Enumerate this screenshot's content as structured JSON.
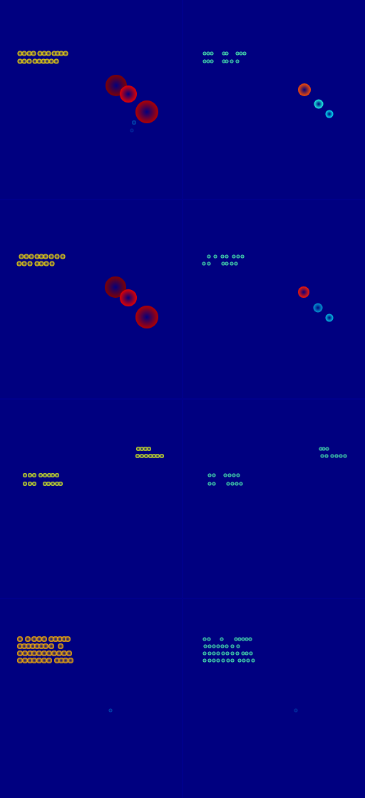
{
  "chart_data": [
    {
      "type": "scatter",
      "xlim": [
        0,
        256
      ],
      "ylim": [
        280,
        0
      ],
      "zlim": [
        0,
        1
      ],
      "tick_labels": false,
      "x": [
        28,
        34,
        41,
        47,
        56,
        62,
        68,
        76,
        81,
        86,
        92,
        28,
        34,
        41,
        49,
        55,
        61,
        66,
        72,
        79,
        163,
        180,
        206,
        188,
        185
      ],
      "y": [
        75,
        75,
        75,
        75,
        75,
        75,
        75,
        75,
        75,
        75,
        75,
        86,
        86,
        86,
        86,
        86,
        86,
        86,
        86,
        86,
        120,
        132,
        157,
        172,
        183
      ],
      "values": [
        0.65,
        0.65,
        0.65,
        0.65,
        0.65,
        0.65,
        0.65,
        0.65,
        0.65,
        0.65,
        0.65,
        0.65,
        0.65,
        0.65,
        0.65,
        0.65,
        0.65,
        0.65,
        0.65,
        0.65,
        1.0,
        0.9,
        0.95,
        0.15,
        0.1
      ],
      "sizes": [
        7,
        7,
        7,
        7,
        7,
        7,
        7,
        7,
        7,
        7,
        7,
        7,
        7,
        7,
        7,
        7,
        7,
        7,
        7,
        7,
        30,
        24,
        32,
        6,
        5
      ]
    },
    {
      "type": "scatter",
      "xlim": [
        0,
        256
      ],
      "ylim": [
        280,
        0
      ],
      "zlim": [
        0,
        1
      ],
      "tick_labels": false,
      "x": [
        31,
        36,
        41,
        58,
        62,
        77,
        82,
        87,
        31,
        36,
        41,
        58,
        62,
        69,
        77,
        171,
        191,
        206
      ],
      "y": [
        75,
        75,
        75,
        75,
        75,
        75,
        75,
        75,
        86,
        86,
        86,
        86,
        86,
        86,
        86,
        126,
        146,
        160
      ],
      "values": [
        0.45,
        0.45,
        0.45,
        0.45,
        0.45,
        0.45,
        0.45,
        0.45,
        0.45,
        0.45,
        0.45,
        0.45,
        0.45,
        0.45,
        0.45,
        0.8,
        0.4,
        0.35
      ],
      "sizes": [
        5,
        5,
        5,
        5,
        5,
        5,
        5,
        5,
        5,
        5,
        5,
        5,
        5,
        5,
        5,
        18,
        13,
        11
      ]
    },
    {
      "type": "scatter",
      "xlim": [
        0,
        256
      ],
      "ylim": [
        280,
        0
      ],
      "zlim": [
        0,
        1
      ],
      "tick_labels": false,
      "x": [
        30,
        37,
        44,
        52,
        58,
        64,
        72,
        80,
        88,
        27,
        34,
        42,
        52,
        58,
        65,
        73,
        162,
        180,
        206
      ],
      "y": [
        80,
        80,
        80,
        80,
        80,
        80,
        80,
        80,
        80,
        90,
        90,
        90,
        90,
        90,
        90,
        90,
        123,
        138,
        165
      ],
      "values": [
        0.65,
        0.65,
        0.65,
        0.65,
        0.65,
        0.65,
        0.65,
        0.65,
        0.65,
        0.65,
        0.65,
        0.65,
        0.65,
        0.65,
        0.65,
        0.65,
        1.0,
        0.9,
        0.95
      ],
      "sizes": [
        7,
        7,
        7,
        7,
        7,
        7,
        7,
        7,
        7,
        7,
        7,
        7,
        7,
        7,
        7,
        7,
        30,
        24,
        32
      ]
    },
    {
      "type": "scatter",
      "xlim": [
        0,
        256
      ],
      "ylim": [
        280,
        0
      ],
      "zlim": [
        0,
        1
      ],
      "tick_labels": false,
      "x": [
        37,
        46,
        56,
        62,
        72,
        78,
        84,
        30,
        37,
        57,
        62,
        69,
        75,
        170,
        190,
        206
      ],
      "y": [
        80,
        80,
        80,
        80,
        80,
        80,
        80,
        90,
        90,
        90,
        90,
        90,
        90,
        130,
        152,
        166
      ],
      "values": [
        0.45,
        0.45,
        0.45,
        0.45,
        0.45,
        0.45,
        0.45,
        0.45,
        0.45,
        0.45,
        0.45,
        0.45,
        0.45,
        0.85,
        0.25,
        0.3
      ],
      "sizes": [
        5,
        5,
        5,
        5,
        5,
        5,
        5,
        5,
        5,
        5,
        5,
        5,
        5,
        16,
        13,
        11
      ]
    },
    {
      "type": "scatter",
      "xlim": [
        0,
        256
      ],
      "ylim": [
        280,
        0
      ],
      "zlim": [
        0,
        1
      ],
      "tick_labels": false,
      "x": [
        194,
        199,
        204,
        209,
        193,
        199,
        205,
        211,
        216,
        221,
        227,
        35,
        42,
        48,
        57,
        63,
        69,
        74,
        80,
        35,
        42,
        48,
        63,
        68,
        74,
        80,
        85
      ],
      "y": [
        70,
        70,
        70,
        70,
        80,
        80,
        80,
        80,
        80,
        80,
        80,
        107,
        107,
        107,
        107,
        107,
        107,
        107,
        107,
        119,
        119,
        119,
        119,
        119,
        119,
        119,
        119
      ],
      "values": [
        0.6,
        0.6,
        0.6,
        0.6,
        0.6,
        0.6,
        0.6,
        0.6,
        0.6,
        0.6,
        0.6,
        0.6,
        0.6,
        0.6,
        0.6,
        0.6,
        0.6,
        0.6,
        0.6,
        0.6,
        0.6,
        0.6,
        0.6,
        0.6,
        0.6,
        0.6,
        0.6
      ],
      "sizes": [
        6,
        6,
        6,
        6,
        6,
        6,
        6,
        6,
        6,
        6,
        6,
        6,
        6,
        6,
        6,
        6,
        6,
        6,
        6,
        6,
        6,
        6,
        6,
        6,
        6,
        6,
        6
      ]
    },
    {
      "type": "scatter",
      "xlim": [
        0,
        256
      ],
      "ylim": [
        280,
        0
      ],
      "zlim": [
        0,
        1
      ],
      "tick_labels": false,
      "x": [
        194,
        198,
        203,
        196,
        202,
        210,
        216,
        222,
        228,
        38,
        44,
        60,
        66,
        72,
        78,
        38,
        44,
        64,
        70,
        76,
        82
      ],
      "y": [
        70,
        70,
        70,
        80,
        80,
        80,
        80,
        80,
        80,
        107,
        107,
        107,
        107,
        107,
        107,
        119,
        119,
        119,
        119,
        119,
        119
      ],
      "values": [
        0.45,
        0.45,
        0.45,
        0.45,
        0.45,
        0.45,
        0.45,
        0.45,
        0.45,
        0.45,
        0.45,
        0.45,
        0.45,
        0.45,
        0.45,
        0.45,
        0.45,
        0.45,
        0.45,
        0.45,
        0.45
      ],
      "sizes": [
        5,
        5,
        5,
        5,
        5,
        5,
        5,
        5,
        5,
        5,
        5,
        5,
        5,
        5,
        5,
        5,
        5,
        5,
        5,
        5,
        5
      ]
    },
    {
      "type": "scatter",
      "xlim": [
        0,
        256
      ],
      "ylim": [
        280,
        0
      ],
      "zlim": [
        0,
        1
      ],
      "tick_labels": false,
      "x": [
        28,
        39,
        48,
        55,
        62,
        72,
        78,
        84,
        90,
        95,
        28,
        34,
        40,
        46,
        52,
        58,
        64,
        72,
        85,
        28,
        35,
        42,
        48,
        55,
        62,
        69,
        76,
        83,
        90,
        97,
        28,
        35,
        42,
        48,
        55,
        62,
        69,
        80,
        86,
        92,
        99,
        155
      ],
      "y": [
        57,
        57,
        57,
        57,
        57,
        57,
        57,
        57,
        57,
        57,
        67,
        67,
        67,
        67,
        67,
        67,
        67,
        67,
        67,
        77,
        77,
        77,
        77,
        77,
        77,
        77,
        77,
        77,
        77,
        77,
        87,
        87,
        87,
        87,
        87,
        87,
        87,
        87,
        87,
        87,
        87,
        157
      ],
      "values": [
        0.7,
        0.7,
        0.7,
        0.7,
        0.7,
        0.7,
        0.7,
        0.7,
        0.7,
        0.7,
        0.7,
        0.7,
        0.7,
        0.7,
        0.7,
        0.7,
        0.7,
        0.7,
        0.7,
        0.7,
        0.7,
        0.7,
        0.7,
        0.7,
        0.7,
        0.7,
        0.7,
        0.7,
        0.7,
        0.7,
        0.7,
        0.7,
        0.7,
        0.7,
        0.7,
        0.7,
        0.7,
        0.7,
        0.7,
        0.7,
        0.7,
        0.15
      ],
      "sizes": [
        8,
        8,
        8,
        8,
        8,
        8,
        8,
        8,
        8,
        8,
        8,
        8,
        8,
        8,
        8,
        8,
        8,
        8,
        8,
        8,
        8,
        8,
        8,
        8,
        8,
        8,
        8,
        8,
        8,
        8,
        8,
        8,
        8,
        8,
        8,
        8,
        8,
        8,
        8,
        8,
        8,
        5
      ]
    },
    {
      "type": "scatter",
      "xlim": [
        0,
        256
      ],
      "ylim": [
        280,
        0
      ],
      "zlim": [
        0,
        1
      ],
      "tick_labels": false,
      "x": [
        31,
        37,
        55,
        75,
        80,
        85,
        90,
        95,
        32,
        38,
        44,
        50,
        56,
        62,
        70,
        78,
        31,
        38,
        44,
        50,
        57,
        63,
        70,
        77,
        85,
        90,
        96,
        31,
        38,
        44,
        50,
        57,
        64,
        70,
        80,
        86,
        92,
        99,
        159
      ],
      "y": [
        57,
        57,
        57,
        57,
        57,
        57,
        57,
        57,
        67,
        67,
        67,
        67,
        67,
        67,
        67,
        67,
        77,
        77,
        77,
        77,
        77,
        77,
        77,
        77,
        77,
        77,
        77,
        87,
        87,
        87,
        87,
        87,
        87,
        87,
        87,
        87,
        87,
        87,
        157
      ],
      "values": [
        0.45,
        0.45,
        0.45,
        0.45,
        0.45,
        0.45,
        0.45,
        0.45,
        0.45,
        0.45,
        0.45,
        0.45,
        0.45,
        0.45,
        0.45,
        0.45,
        0.45,
        0.45,
        0.45,
        0.45,
        0.45,
        0.45,
        0.45,
        0.45,
        0.45,
        0.45,
        0.45,
        0.45,
        0.45,
        0.45,
        0.45,
        0.45,
        0.45,
        0.45,
        0.45,
        0.45,
        0.45,
        0.45,
        0.12
      ],
      "sizes": [
        5,
        5,
        5,
        5,
        5,
        5,
        5,
        5,
        5,
        5,
        5,
        5,
        5,
        5,
        5,
        5,
        5,
        5,
        5,
        5,
        5,
        5,
        5,
        5,
        5,
        5,
        5,
        5,
        5,
        5,
        5,
        5,
        5,
        5,
        5,
        5,
        5,
        5,
        5
      ]
    }
  ]
}
